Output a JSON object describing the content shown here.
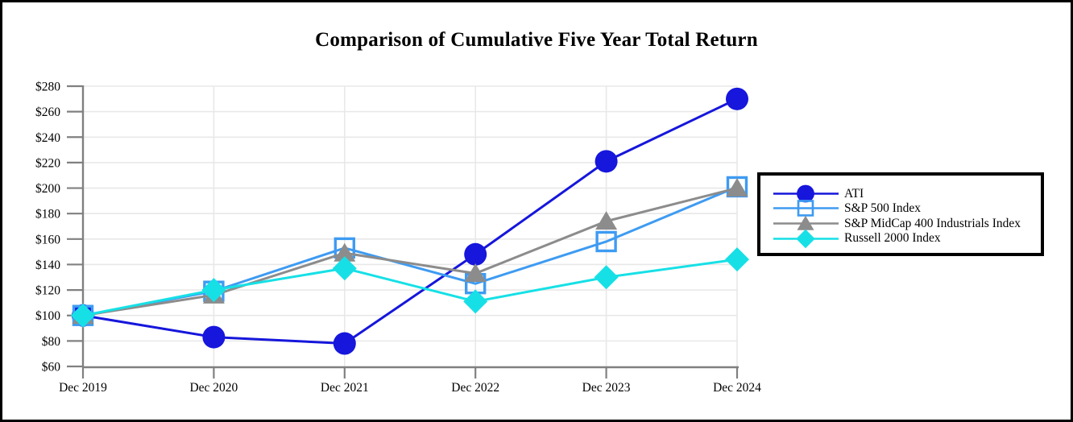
{
  "chart_data": {
    "type": "line",
    "title": "Comparison of Cumulative Five Year Total Return",
    "categories": [
      "Dec 2019",
      "Dec 2020",
      "Dec 2021",
      "Dec 2022",
      "Dec 2023",
      "Dec 2024"
    ],
    "series": [
      {
        "name": "ATI",
        "marker": "circle",
        "color": "#1616DC",
        "values": [
          100,
          83,
          78,
          148,
          221,
          270
        ]
      },
      {
        "name": "S&P 500 Index",
        "marker": "open-square",
        "color": "#3E9BF2",
        "values": [
          100,
          119,
          153,
          125,
          158,
          201
        ]
      },
      {
        "name": "S&P MidCap 400 Industrials Index",
        "marker": "triangle",
        "color": "#8C8C8C",
        "values": [
          100,
          116,
          149,
          133,
          174,
          200
        ]
      },
      {
        "name": "Russell 2000 Index",
        "marker": "diamond",
        "color": "#16E0E6",
        "values": [
          100,
          120,
          137,
          111,
          130,
          144
        ]
      }
    ],
    "ylim": [
      60,
      280
    ],
    "ytick_step": 20,
    "y_tick_values": [
      60,
      80,
      100,
      120,
      140,
      160,
      180,
      200,
      220,
      240,
      260,
      280
    ],
    "y_tick_labels": [
      "$60",
      "$80",
      "$100",
      "$120",
      "$140",
      "$160",
      "$180",
      "$200",
      "$220",
      "$240",
      "$260",
      "$280"
    ],
    "xlabel": "",
    "ylabel": "",
    "grid": true,
    "legend_position": "right",
    "axis_color": "#808080",
    "grid_color": "#E8E8E8",
    "text_color": "#000000"
  }
}
